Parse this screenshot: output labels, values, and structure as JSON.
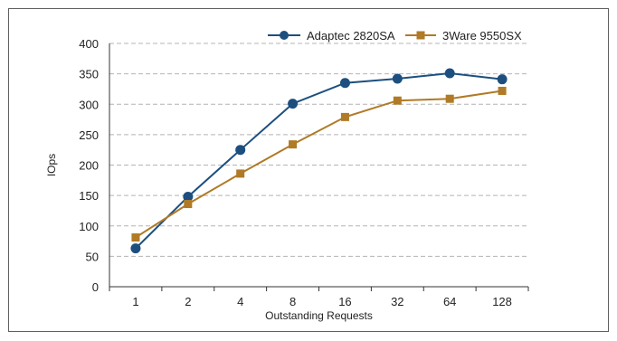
{
  "chart_data": {
    "type": "line",
    "title": "",
    "xlabel": "Outstanding Requests",
    "ylabel": "IOps",
    "categories": [
      "1",
      "2",
      "4",
      "8",
      "16",
      "32",
      "64",
      "128"
    ],
    "ylim": [
      0,
      400
    ],
    "yticks": [
      "0",
      "50",
      "100",
      "150",
      "200",
      "250",
      "300",
      "350",
      "400"
    ],
    "grid": "horizontal dashed",
    "legend_position": "top-right",
    "series": [
      {
        "name": "Adaptec 2820SA",
        "color": "#1c4f7f",
        "marker": "circle",
        "values": [
          63,
          148,
          225,
          301,
          335,
          342,
          351,
          341
        ]
      },
      {
        "name": "3Ware 9550SX",
        "color": "#b07a26",
        "marker": "square",
        "values": [
          81,
          136,
          186,
          234,
          279,
          306,
          309,
          322
        ]
      }
    ]
  }
}
